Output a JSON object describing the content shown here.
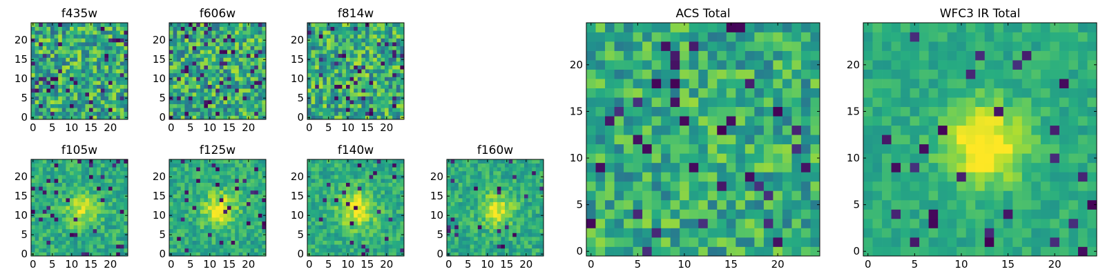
{
  "chart_data": [
    {
      "type": "heatmap",
      "title": "f435w",
      "tick_labels": [
        "0",
        "5",
        "10",
        "15",
        "20"
      ],
      "grid_size": [
        25,
        25
      ],
      "seed": 11,
      "source": {
        "peak": 0.0,
        "sigma": 3.5
      },
      "noise": 1.0,
      "low_frac": 0.07,
      "colormap": "viridis",
      "grid": false,
      "legend": false
    },
    {
      "type": "heatmap",
      "title": "f606w",
      "tick_labels": [
        "0",
        "5",
        "10",
        "15",
        "20"
      ],
      "grid_size": [
        25,
        25
      ],
      "seed": 23,
      "source": {
        "peak": 0.0,
        "sigma": 3.5
      },
      "noise": 1.0,
      "low_frac": 0.07,
      "colormap": "viridis",
      "grid": false,
      "legend": false
    },
    {
      "type": "heatmap",
      "title": "f814w",
      "tick_labels": [
        "0",
        "5",
        "10",
        "15",
        "20"
      ],
      "grid_size": [
        25,
        25
      ],
      "seed": 37,
      "source": {
        "peak": 0.05,
        "sigma": 3.0
      },
      "noise": 1.0,
      "low_frac": 0.07,
      "colormap": "viridis",
      "grid": false,
      "legend": false
    },
    {
      "type": "heatmap",
      "title": "f105w",
      "tick_labels": [
        "0",
        "5",
        "10",
        "15",
        "20"
      ],
      "grid_size": [
        25,
        25
      ],
      "seed": 41,
      "source": {
        "peak": 0.55,
        "sigma": 2.8
      },
      "noise": 0.55,
      "low_frac": 0.05,
      "colormap": "viridis",
      "grid": false,
      "legend": false
    },
    {
      "type": "heatmap",
      "title": "f125w",
      "tick_labels": [
        "0",
        "5",
        "10",
        "15",
        "20"
      ],
      "grid_size": [
        25,
        25
      ],
      "seed": 53,
      "source": {
        "peak": 0.6,
        "sigma": 3.2
      },
      "noise": 0.5,
      "low_frac": 0.05,
      "colormap": "viridis",
      "grid": false,
      "legend": false
    },
    {
      "type": "heatmap",
      "title": "f140w",
      "tick_labels": [
        "0",
        "5",
        "10",
        "15",
        "20"
      ],
      "grid_size": [
        25,
        25
      ],
      "seed": 67,
      "source": {
        "peak": 0.6,
        "sigma": 3.5
      },
      "noise": 0.5,
      "low_frac": 0.04,
      "colormap": "viridis",
      "grid": false,
      "legend": false
    },
    {
      "type": "heatmap",
      "title": "f160w",
      "tick_labels": [
        "0",
        "5",
        "10",
        "15",
        "20"
      ],
      "grid_size": [
        25,
        25
      ],
      "seed": 79,
      "source": {
        "peak": 0.55,
        "sigma": 3.0
      },
      "noise": 0.5,
      "low_frac": 0.05,
      "colormap": "viridis",
      "grid": false,
      "legend": false
    },
    {
      "type": "heatmap",
      "title": "ACS Total",
      "tick_labels": [
        "0",
        "5",
        "10",
        "15",
        "20"
      ],
      "grid_size": [
        25,
        25
      ],
      "seed": 97,
      "source": {
        "peak": 0.15,
        "sigma": 3.0
      },
      "noise": 0.8,
      "low_frac": 0.06,
      "colormap": "viridis",
      "grid": false,
      "legend": false
    },
    {
      "type": "heatmap",
      "title": "WFC3 IR Total",
      "tick_labels": [
        "0",
        "5",
        "10",
        "15",
        "20"
      ],
      "grid_size": [
        25,
        25
      ],
      "seed": 113,
      "source": {
        "peak": 0.75,
        "sigma": 3.0
      },
      "noise": 0.35,
      "low_frac": 0.05,
      "colormap": "viridis",
      "grid": false,
      "legend": false
    }
  ]
}
